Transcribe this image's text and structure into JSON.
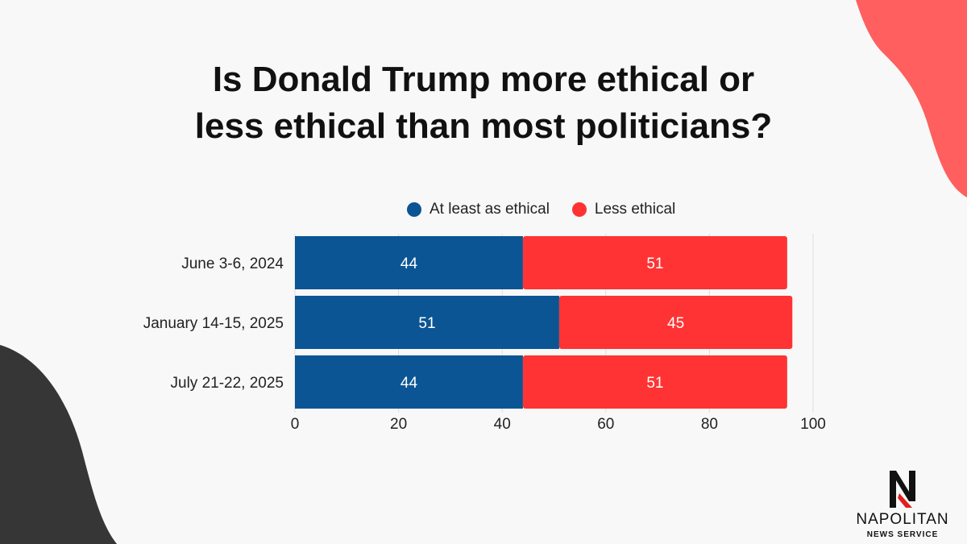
{
  "title_lines": [
    "Is Donald Trump more ethical or",
    "less ethical than most politicians?"
  ],
  "legend": [
    {
      "label": "At least as ethical",
      "color": "#0b5594"
    },
    {
      "label": "Less ethical",
      "color": "#ff3333"
    }
  ],
  "chart_data": {
    "type": "bar",
    "orientation": "horizontal",
    "stacked": true,
    "categories": [
      "June 3-6, 2024",
      "January 14-15, 2025",
      "July 21-22, 2025"
    ],
    "series": [
      {
        "name": "At least as ethical",
        "color": "#0b5594",
        "values": [
          44,
          51,
          44
        ]
      },
      {
        "name": "Less ethical",
        "color": "#ff3333",
        "values": [
          51,
          45,
          51
        ]
      }
    ],
    "xlim": [
      0,
      100
    ],
    "xticks": [
      0,
      20,
      40,
      60,
      80,
      100
    ],
    "grid": true,
    "legend_position": "top",
    "data_labels": true
  },
  "brand": {
    "name": "NAPOLITAN",
    "subtitle": "NEWS SERVICE"
  },
  "decor_colors": {
    "top_right_blob": "#ff5f5f",
    "bottom_left_blob": "#363636"
  }
}
